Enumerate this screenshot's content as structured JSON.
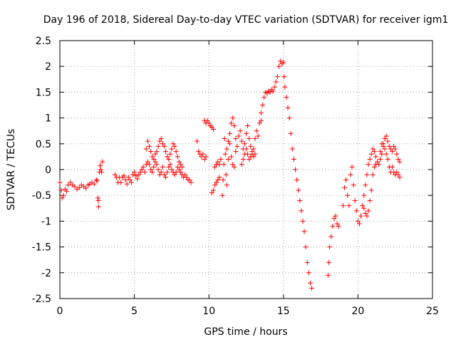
{
  "chart_data": {
    "type": "scatter",
    "title": "Day 196 of 2018, Sidereal Day-to-day VTEC variation (SDTVAR) for receiver igm1",
    "xlabel": "GPS time / hours",
    "ylabel": "SDTVAR / TECUs",
    "xlim": [
      0,
      25
    ],
    "ylim": [
      -2.5,
      2.5
    ],
    "x_ticks": [
      "0",
      "5",
      "10",
      "15",
      "20",
      "25"
    ],
    "y_ticks": [
      "2.5",
      "2",
      "1.5",
      "1",
      "0.5",
      "0",
      "-0.5",
      "-1",
      "-1.5",
      "-2",
      "-2.5"
    ],
    "grid": true,
    "marker": "+",
    "color": "#ff0000",
    "series": [
      {
        "name": "igm1",
        "points": [
          [
            0.0,
            -0.25
          ],
          [
            0.1,
            -0.4
          ],
          [
            0.15,
            -0.55
          ],
          [
            0.25,
            -0.5
          ],
          [
            0.35,
            -0.38
          ],
          [
            0.45,
            -0.42
          ],
          [
            0.55,
            -0.3
          ],
          [
            0.7,
            -0.25
          ],
          [
            0.85,
            -0.3
          ],
          [
            1.0,
            -0.33
          ],
          [
            1.15,
            -0.38
          ],
          [
            1.3,
            -0.35
          ],
          [
            1.45,
            -0.3
          ],
          [
            1.6,
            -0.33
          ],
          [
            1.75,
            -0.36
          ],
          [
            1.9,
            -0.3
          ],
          [
            2.0,
            -0.28
          ],
          [
            2.15,
            -0.25
          ],
          [
            2.3,
            -0.28
          ],
          [
            2.45,
            -0.2
          ],
          [
            2.5,
            -0.22
          ],
          [
            2.55,
            -0.55
          ],
          [
            2.6,
            -0.72
          ],
          [
            2.58,
            -0.6
          ],
          [
            2.65,
            -0.05
          ],
          [
            2.7,
            0.08
          ],
          [
            2.75,
            0.0
          ],
          [
            2.8,
            -0.05
          ],
          [
            2.85,
            0.15
          ],
          [
            3.7,
            -0.1
          ],
          [
            3.8,
            -0.15
          ],
          [
            3.9,
            -0.25
          ],
          [
            4.0,
            -0.15
          ],
          [
            4.1,
            -0.25
          ],
          [
            4.2,
            -0.15
          ],
          [
            4.3,
            -0.12
          ],
          [
            4.4,
            -0.2
          ],
          [
            4.5,
            -0.28
          ],
          [
            4.6,
            -0.15
          ],
          [
            4.7,
            -0.2
          ],
          [
            4.8,
            -0.25
          ],
          [
            4.9,
            -0.1
          ],
          [
            5.0,
            -0.05
          ],
          [
            5.1,
            -0.12
          ],
          [
            5.2,
            -0.18
          ],
          [
            5.3,
            -0.1
          ],
          [
            5.4,
            -0.05
          ],
          [
            5.5,
            0.0
          ],
          [
            5.6,
            0.05
          ],
          [
            5.7,
            -0.05
          ],
          [
            5.8,
            0.1
          ],
          [
            5.9,
            0.15
          ],
          [
            6.0,
            0.1
          ],
          [
            6.1,
            0.0
          ],
          [
            6.2,
            -0.05
          ],
          [
            6.3,
            0.05
          ],
          [
            6.4,
            0.15
          ],
          [
            6.5,
            0.1
          ],
          [
            5.8,
            0.4
          ],
          [
            5.9,
            0.55
          ],
          [
            6.0,
            0.45
          ],
          [
            6.1,
            0.35
          ],
          [
            6.2,
            0.25
          ],
          [
            6.3,
            0.2
          ],
          [
            6.4,
            0.3
          ],
          [
            6.5,
            0.35
          ],
          [
            6.6,
            0.45
          ],
          [
            6.7,
            0.55
          ],
          [
            6.8,
            0.6
          ],
          [
            6.9,
            0.5
          ],
          [
            7.0,
            0.45
          ],
          [
            7.1,
            0.35
          ],
          [
            7.2,
            0.25
          ],
          [
            7.3,
            0.2
          ],
          [
            7.4,
            0.3
          ],
          [
            7.5,
            0.4
          ],
          [
            7.6,
            0.5
          ],
          [
            7.7,
            0.45
          ],
          [
            7.8,
            0.35
          ],
          [
            7.9,
            0.25
          ],
          [
            8.0,
            0.15
          ],
          [
            8.1,
            0.1
          ],
          [
            8.2,
            0.05
          ],
          [
            6.6,
            0.0
          ],
          [
            6.7,
            -0.1
          ],
          [
            6.8,
            -0.05
          ],
          [
            6.9,
            0.05
          ],
          [
            7.0,
            -0.1
          ],
          [
            7.1,
            -0.15
          ],
          [
            7.2,
            -0.05
          ],
          [
            7.3,
            0.05
          ],
          [
            7.4,
            0.1
          ],
          [
            7.5,
            0.0
          ],
          [
            7.6,
            -0.05
          ],
          [
            7.7,
            -0.1
          ],
          [
            7.8,
            -0.05
          ],
          [
            7.9,
            0.05
          ],
          [
            8.0,
            0.0
          ],
          [
            8.1,
            -0.05
          ],
          [
            8.2,
            -0.1
          ],
          [
            8.3,
            -0.15
          ],
          [
            8.4,
            -0.1
          ],
          [
            8.5,
            -0.15
          ],
          [
            8.6,
            -0.2
          ],
          [
            8.7,
            -0.2
          ],
          [
            8.8,
            -0.25
          ],
          [
            9.2,
            0.55
          ],
          [
            9.3,
            0.35
          ],
          [
            9.4,
            0.3
          ],
          [
            9.5,
            0.25
          ],
          [
            9.6,
            0.3
          ],
          [
            9.7,
            0.2
          ],
          [
            9.8,
            0.25
          ],
          [
            9.7,
            0.95
          ],
          [
            9.8,
            0.9
          ],
          [
            9.9,
            0.95
          ],
          [
            10.0,
            0.9
          ],
          [
            10.1,
            0.85
          ],
          [
            10.2,
            0.82
          ],
          [
            10.3,
            0.78
          ],
          [
            10.2,
            -0.45
          ],
          [
            10.3,
            -0.4
          ],
          [
            10.4,
            -0.3
          ],
          [
            10.5,
            -0.25
          ],
          [
            10.6,
            -0.2
          ],
          [
            10.7,
            -0.15
          ],
          [
            10.4,
            0.05
          ],
          [
            10.5,
            0.1
          ],
          [
            10.6,
            0.15
          ],
          [
            10.7,
            0.1
          ],
          [
            10.8,
            0.2
          ],
          [
            10.9,
            -0.5
          ],
          [
            10.95,
            -0.2
          ],
          [
            11.0,
            0.1
          ],
          [
            11.05,
            0.6
          ],
          [
            11.1,
            0.3
          ],
          [
            11.15,
            -0.1
          ],
          [
            11.2,
            -0.3
          ],
          [
            11.3,
            0.2
          ],
          [
            11.4,
            0.5
          ],
          [
            11.5,
            0.25
          ],
          [
            11.6,
            0.1
          ],
          [
            11.7,
            0.05
          ],
          [
            11.2,
            0.4
          ],
          [
            11.3,
            0.55
          ],
          [
            11.4,
            0.7
          ],
          [
            11.5,
            0.9
          ],
          [
            11.6,
            1.0
          ],
          [
            11.7,
            0.85
          ],
          [
            11.8,
            0.6
          ],
          [
            11.8,
            0.35
          ],
          [
            11.9,
            0.45
          ],
          [
            12.0,
            0.65
          ],
          [
            12.1,
            0.75
          ],
          [
            12.2,
            0.55
          ],
          [
            12.3,
            0.4
          ],
          [
            12.4,
            0.5
          ],
          [
            12.5,
            0.7
          ],
          [
            12.6,
            0.85
          ],
          [
            12.7,
            0.6
          ],
          [
            12.8,
            0.45
          ],
          [
            12.9,
            0.3
          ],
          [
            13.0,
            0.4
          ],
          [
            13.1,
            0.6
          ],
          [
            13.2,
            0.75
          ],
          [
            13.3,
            0.65
          ],
          [
            13.4,
            0.9
          ],
          [
            13.5,
            0.95
          ],
          [
            12.2,
            0.1
          ],
          [
            12.3,
            0.2
          ],
          [
            12.4,
            0.3
          ],
          [
            12.5,
            0.4
          ],
          [
            12.6,
            0.3
          ],
          [
            12.7,
            0.2
          ],
          [
            12.8,
            0.25
          ],
          [
            12.9,
            0.35
          ],
          [
            13.0,
            0.25
          ],
          [
            13.1,
            0.3
          ],
          [
            13.5,
            1.1
          ],
          [
            13.6,
            1.25
          ],
          [
            13.7,
            1.4
          ],
          [
            13.8,
            1.5
          ],
          [
            13.9,
            1.48
          ],
          [
            14.0,
            1.52
          ],
          [
            14.1,
            1.5
          ],
          [
            14.2,
            1.55
          ],
          [
            14.3,
            1.52
          ],
          [
            14.4,
            1.6
          ],
          [
            14.5,
            1.7
          ],
          [
            14.6,
            1.8
          ],
          [
            14.7,
            2.0
          ],
          [
            14.8,
            2.1
          ],
          [
            14.9,
            2.05
          ],
          [
            15.0,
            2.08
          ],
          [
            15.05,
            1.8
          ],
          [
            15.1,
            1.6
          ],
          [
            15.2,
            1.4
          ],
          [
            15.3,
            1.2
          ],
          [
            15.4,
            1.0
          ],
          [
            15.5,
            0.7
          ],
          [
            15.6,
            0.4
          ],
          [
            15.7,
            0.2
          ],
          [
            15.8,
            0.0
          ],
          [
            15.9,
            -0.2
          ],
          [
            16.0,
            -0.4
          ],
          [
            16.1,
            -0.6
          ],
          [
            16.2,
            -0.8
          ],
          [
            16.3,
            -1.0
          ],
          [
            16.4,
            -1.2
          ],
          [
            16.5,
            -1.5
          ],
          [
            16.6,
            -1.8
          ],
          [
            16.7,
            -2.0
          ],
          [
            16.8,
            -2.2
          ],
          [
            16.9,
            -2.3
          ],
          [
            18.0,
            -2.05
          ],
          [
            18.05,
            -1.8
          ],
          [
            18.1,
            -1.5
          ],
          [
            18.2,
            -1.3
          ],
          [
            18.3,
            -1.1
          ],
          [
            18.4,
            -0.95
          ],
          [
            18.5,
            -0.9
          ],
          [
            18.6,
            -1.05
          ],
          [
            18.7,
            -1.1
          ],
          [
            19.0,
            -0.7
          ],
          [
            19.1,
            -0.35
          ],
          [
            19.2,
            -0.2
          ],
          [
            19.3,
            -0.5
          ],
          [
            19.4,
            -0.7
          ],
          [
            19.5,
            -0.1
          ],
          [
            19.6,
            0.05
          ],
          [
            19.7,
            -0.3
          ],
          [
            19.8,
            -0.6
          ],
          [
            19.9,
            -0.8
          ],
          [
            20.0,
            -1.0
          ],
          [
            20.1,
            -1.05
          ],
          [
            20.2,
            -0.9
          ],
          [
            20.3,
            -0.7
          ],
          [
            20.4,
            -0.5
          ],
          [
            20.5,
            -0.3
          ],
          [
            20.6,
            -0.1
          ],
          [
            20.7,
            0.1
          ],
          [
            20.8,
            0.2
          ],
          [
            20.9,
            0.3
          ],
          [
            21.0,
            0.4
          ],
          [
            21.1,
            0.35
          ],
          [
            21.2,
            0.25
          ],
          [
            21.3,
            0.15
          ],
          [
            21.4,
            0.1
          ],
          [
            21.5,
            0.2
          ],
          [
            21.6,
            0.3
          ],
          [
            21.7,
            0.5
          ],
          [
            21.8,
            0.6
          ],
          [
            21.9,
            0.65
          ],
          [
            22.0,
            0.55
          ],
          [
            22.1,
            0.45
          ],
          [
            22.2,
            0.4
          ],
          [
            22.3,
            0.35
          ],
          [
            22.4,
            0.45
          ],
          [
            22.5,
            0.4
          ],
          [
            22.6,
            0.3
          ],
          [
            22.7,
            0.2
          ],
          [
            22.8,
            0.15
          ],
          [
            21.5,
            0.35
          ],
          [
            21.6,
            0.5
          ],
          [
            21.7,
            0.45
          ],
          [
            21.8,
            0.4
          ],
          [
            21.9,
            0.3
          ],
          [
            22.0,
            0.2
          ],
          [
            22.1,
            0.05
          ],
          [
            22.2,
            -0.05
          ],
          [
            22.3,
            0.05
          ],
          [
            22.4,
            -0.05
          ],
          [
            22.5,
            -0.1
          ],
          [
            22.6,
            -0.05
          ],
          [
            22.7,
            -0.1
          ],
          [
            22.8,
            -0.15
          ],
          [
            20.4,
            -0.75
          ],
          [
            20.5,
            -0.85
          ],
          [
            20.6,
            -0.9
          ],
          [
            20.7,
            -0.8
          ],
          [
            20.8,
            -0.6
          ],
          [
            20.9,
            -0.4
          ],
          [
            21.0,
            -0.1
          ],
          [
            21.1,
            0.05
          ],
          [
            21.2,
            0.1
          ]
        ]
      }
    ]
  }
}
